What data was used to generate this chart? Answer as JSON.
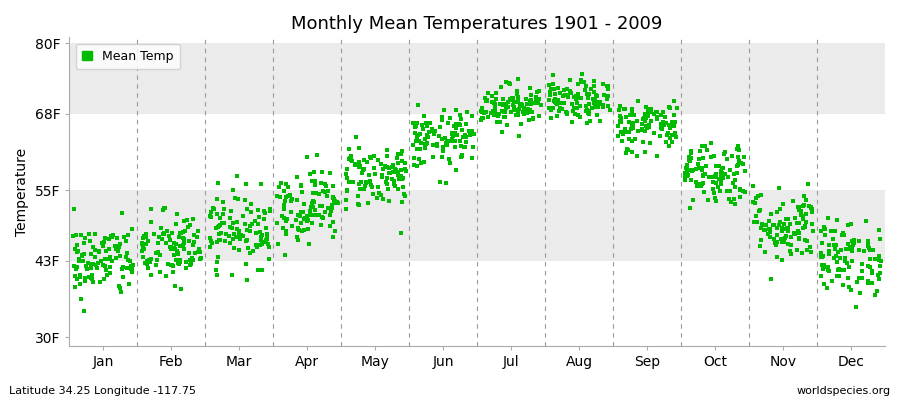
{
  "title": "Monthly Mean Temperatures 1901 - 2009",
  "ylabel": "Temperature",
  "xlabel_labels": [
    "Jan",
    "Feb",
    "Mar",
    "Apr",
    "May",
    "Jun",
    "Jul",
    "Aug",
    "Sep",
    "Oct",
    "Nov",
    "Dec"
  ],
  "ytick_labels": [
    "30F",
    "43F",
    "55F",
    "68F",
    "80F"
  ],
  "ytick_values": [
    30,
    43,
    55,
    68,
    80
  ],
  "ylim": [
    28.5,
    81
  ],
  "marker_color": "#00BB00",
  "marker": "s",
  "marker_size": 3.5,
  "legend_label": "Mean Temp",
  "bg_color": "#FFFFFF",
  "band_color": "#EBEBEB",
  "vline_color": "#999999",
  "subtitle": "Latitude 34.25 Longitude -117.75",
  "credit": "worldspecies.org",
  "monthly_means": [
    43.0,
    45.0,
    48.5,
    52.5,
    57.5,
    63.5,
    69.5,
    70.0,
    66.0,
    58.0,
    49.0,
    43.5
  ],
  "monthly_stds": [
    3.2,
    3.2,
    3.2,
    3.2,
    2.8,
    2.5,
    1.8,
    1.8,
    2.3,
    2.8,
    3.2,
    3.2
  ],
  "n_years": 109
}
